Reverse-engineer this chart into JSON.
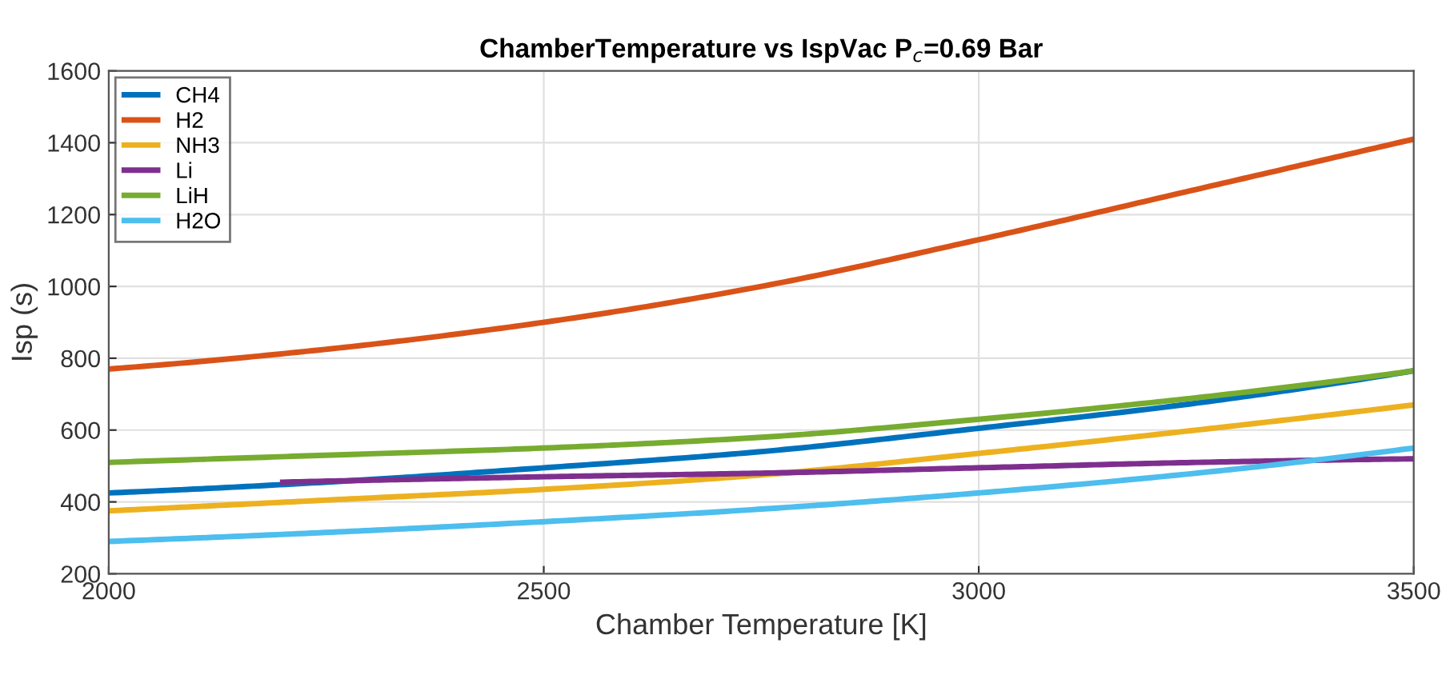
{
  "chart_data": {
    "type": "line",
    "title": "ChamberTemperature vs IspVac P$_{c}$=0.69 Bar",
    "xlabel": "Chamber Temperature [K]",
    "ylabel": "Isp (s)",
    "x": [
      2000,
      2250,
      2500,
      2750,
      3000,
      3250,
      3500
    ],
    "series": [
      {
        "name": "CH4",
        "color": "#0072bd",
        "values": [
          425,
          455,
          495,
          540,
          605,
          675,
          765
        ]
      },
      {
        "name": "H2",
        "color": "#d95319",
        "values": [
          770,
          825,
          900,
          1000,
          1130,
          1270,
          1410
        ]
      },
      {
        "name": "NH3",
        "color": "#edb120",
        "values": [
          375,
          405,
          435,
          475,
          535,
          600,
          670
        ]
      },
      {
        "name": "Li",
        "color": "#7e2f8e",
        "x": [
          2200,
          2500,
          2750,
          3000,
          3250,
          3500
        ],
        "values": [
          455,
          470,
          480,
          495,
          510,
          520
        ]
      },
      {
        "name": "LiH",
        "color": "#77ac30",
        "values": [
          510,
          530,
          550,
          580,
          630,
          690,
          765
        ]
      },
      {
        "name": "H2O",
        "color": "#4dbeee",
        "values": [
          290,
          315,
          345,
          380,
          425,
          480,
          550
        ]
      }
    ],
    "xlim": [
      2000,
      3500
    ],
    "xticks": [
      2000,
      2500,
      3000,
      3500
    ],
    "ylim": [
      200,
      1600
    ],
    "yticks": [
      200,
      400,
      600,
      800,
      1000,
      1200,
      1400,
      1600
    ],
    "grid": true,
    "legend": "top left",
    "marker": "none",
    "line_style": "solid"
  }
}
